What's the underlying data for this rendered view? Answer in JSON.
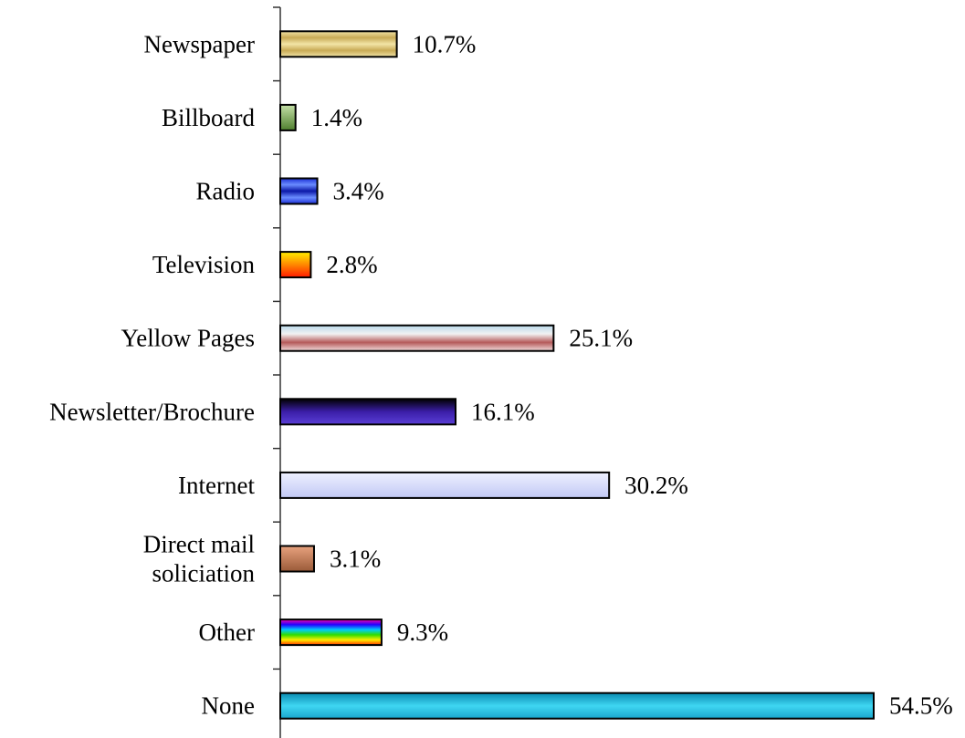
{
  "chart_data": {
    "type": "bar",
    "orientation": "horizontal",
    "title": "",
    "xlabel": "",
    "ylabel": "",
    "xlim": [
      0,
      55
    ],
    "grid": false,
    "legend": "none",
    "categories": [
      "Newspaper",
      "Billboard",
      "Radio",
      "Television",
      "Yellow Pages",
      "Newsletter/Brochure",
      "Internet",
      "Direct mail soliciation",
      "Other",
      "None"
    ],
    "category_lines": [
      [
        "Newspaper"
      ],
      [
        "Billboard"
      ],
      [
        "Radio"
      ],
      [
        "Television"
      ],
      [
        "Yellow Pages"
      ],
      [
        "Newsletter/Brochure"
      ],
      [
        "Internet"
      ],
      [
        "Direct mail",
        "soliciation"
      ],
      [
        "Other"
      ],
      [
        "None"
      ]
    ],
    "values": [
      10.7,
      1.4,
      3.4,
      2.8,
      25.1,
      16.1,
      30.2,
      3.1,
      9.3,
      54.5
    ],
    "value_labels": [
      "10.7%",
      "1.4%",
      "3.4%",
      "2.8%",
      "25.1%",
      "16.1%",
      "30.2%",
      "3.1%",
      "9.3%",
      "54.5%"
    ],
    "bar_colors": [
      [
        "#f2e4a6",
        "#c8aa55",
        "#f2e4a6",
        "#c8aa55",
        "#f2e4a6"
      ],
      [
        "#c5e0a8",
        "#4f7f2e"
      ],
      [
        "#1c2fd6",
        "#6a8cff",
        "#0b18a8",
        "#6a8cff",
        "#1c2fd6"
      ],
      [
        "#ffee00",
        "#ff8800",
        "#ff1a00"
      ],
      [
        "#b8d8ea",
        "#f2f2f2",
        "#b55a5a",
        "#f2dede"
      ],
      [
        "#000000",
        "#3b1ea8",
        "#5a3fd6"
      ],
      [
        "#eef0ff",
        "#c2c9f5"
      ],
      [
        "#e8a27e",
        "#9a5a38"
      ],
      [
        "#ff00aa",
        "#2200ff",
        "#00ccff",
        "#33dd00",
        "#ffee00",
        "#ff3300"
      ],
      [
        "#0a8ab0",
        "#3fd6f2",
        "#1aa6cc"
      ]
    ]
  }
}
